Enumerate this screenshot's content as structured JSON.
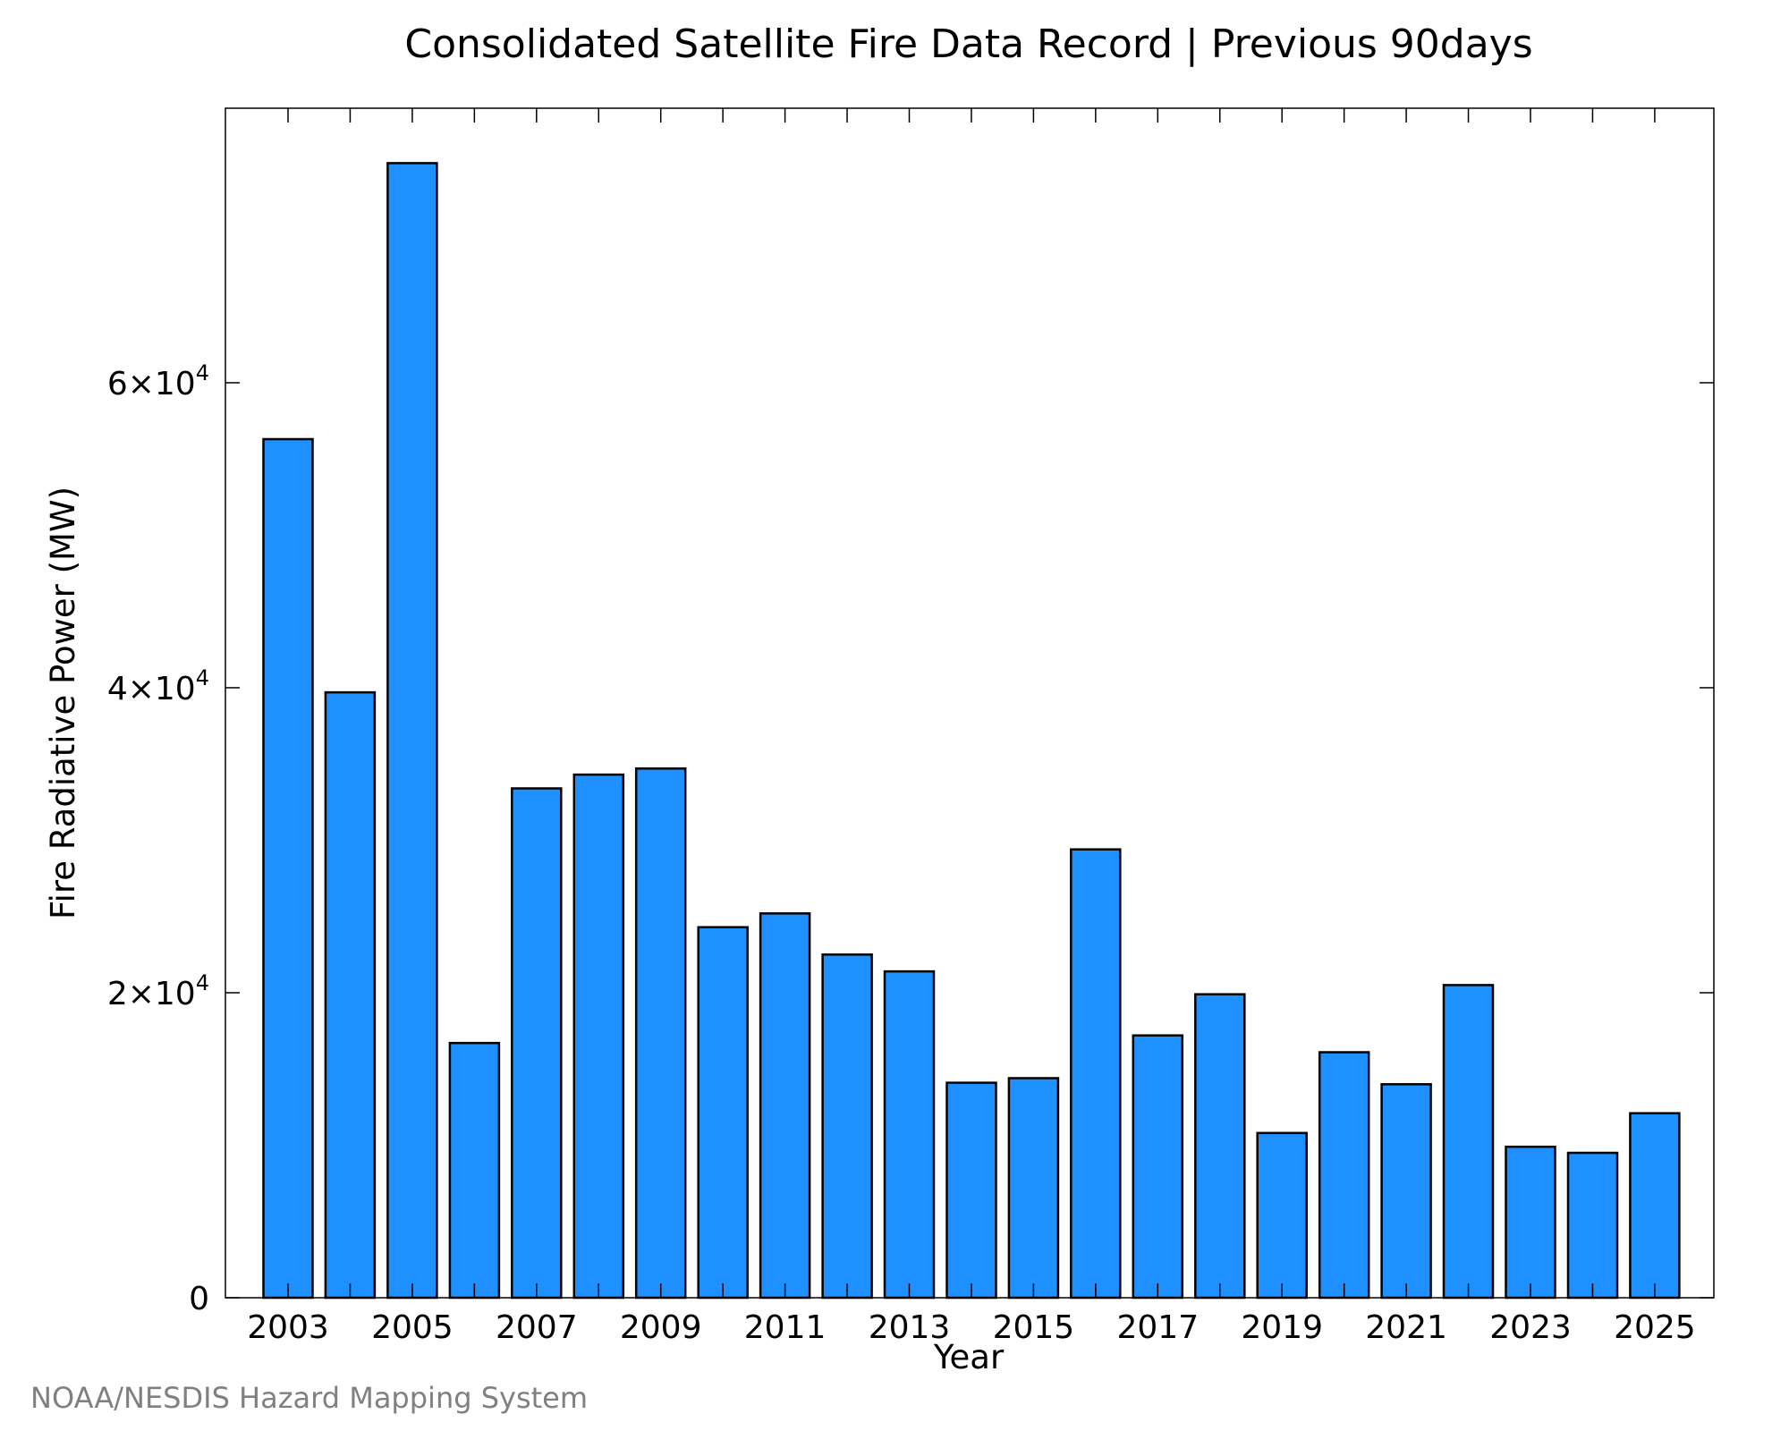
{
  "chart_data": {
    "type": "bar",
    "title": "Consolidated Satellite Fire Data Record | Previous 90days",
    "xlabel": "Year",
    "ylabel": "Fire Radiative Power (MW)",
    "categories": [
      "2003",
      "2004",
      "2005",
      "2006",
      "2007",
      "2008",
      "2009",
      "2010",
      "2011",
      "2012",
      "2013",
      "2014",
      "2015",
      "2016",
      "2017",
      "2018",
      "2019",
      "2020",
      "2021",
      "2022",
      "2023",
      "2024",
      "2025"
    ],
    "values": [
      56300,
      39700,
      74400,
      16700,
      33400,
      34300,
      34700,
      24300,
      25200,
      22500,
      21400,
      14100,
      14400,
      29400,
      17200,
      19900,
      10800,
      16100,
      14000,
      20500,
      9900,
      9500,
      12100
    ],
    "x_tick_labels": [
      "2003",
      "2005",
      "2007",
      "2009",
      "2011",
      "2013",
      "2015",
      "2017",
      "2019",
      "2021",
      "2023",
      "2025"
    ],
    "y_ticks": [
      {
        "value": 0,
        "mantissa": "0",
        "exponent": ""
      },
      {
        "value": 20000,
        "mantissa": "2×10",
        "exponent": "4"
      },
      {
        "value": 40000,
        "mantissa": "4×10",
        "exponent": "4"
      },
      {
        "value": 60000,
        "mantissa": "6×10",
        "exponent": "4"
      }
    ],
    "ylim": [
      0,
      78000
    ],
    "bar_color": "#1E90FF",
    "bar_edge_color": "#000000",
    "grid": false,
    "legend": "none"
  },
  "footer": {
    "credit": "NOAA/NESDIS Hazard Mapping System"
  }
}
